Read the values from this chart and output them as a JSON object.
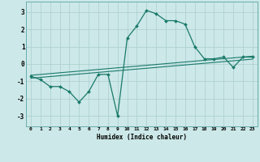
{
  "x": [
    0,
    1,
    2,
    3,
    4,
    5,
    6,
    7,
    8,
    9,
    10,
    11,
    12,
    13,
    14,
    15,
    16,
    17,
    18,
    19,
    20,
    21,
    22,
    23
  ],
  "y_main": [
    -0.7,
    -0.9,
    -1.3,
    -1.3,
    -1.6,
    -2.2,
    -1.6,
    -0.6,
    -0.6,
    -3.0,
    1.5,
    2.2,
    3.1,
    2.9,
    2.5,
    2.5,
    2.3,
    1.0,
    0.3,
    0.3,
    0.4,
    -0.2,
    0.4,
    0.4
  ],
  "trend1_x": [
    0,
    23
  ],
  "trend1_y": [
    -0.65,
    0.45
  ],
  "trend2_x": [
    0,
    23
  ],
  "trend2_y": [
    -0.82,
    0.28
  ],
  "line_color": "#1a7a6a",
  "bg_color": "#cce8e8",
  "grid_color": "#aacece",
  "xlabel": "Humidex (Indice chaleur)",
  "xlim": [
    -0.5,
    23.5
  ],
  "ylim": [
    -3.6,
    3.6
  ],
  "yticks": [
    -3,
    -2,
    -1,
    0,
    1,
    2,
    3
  ],
  "xticks": [
    0,
    1,
    2,
    3,
    4,
    5,
    6,
    7,
    8,
    9,
    10,
    11,
    12,
    13,
    14,
    15,
    16,
    17,
    18,
    19,
    20,
    21,
    22,
    23
  ]
}
